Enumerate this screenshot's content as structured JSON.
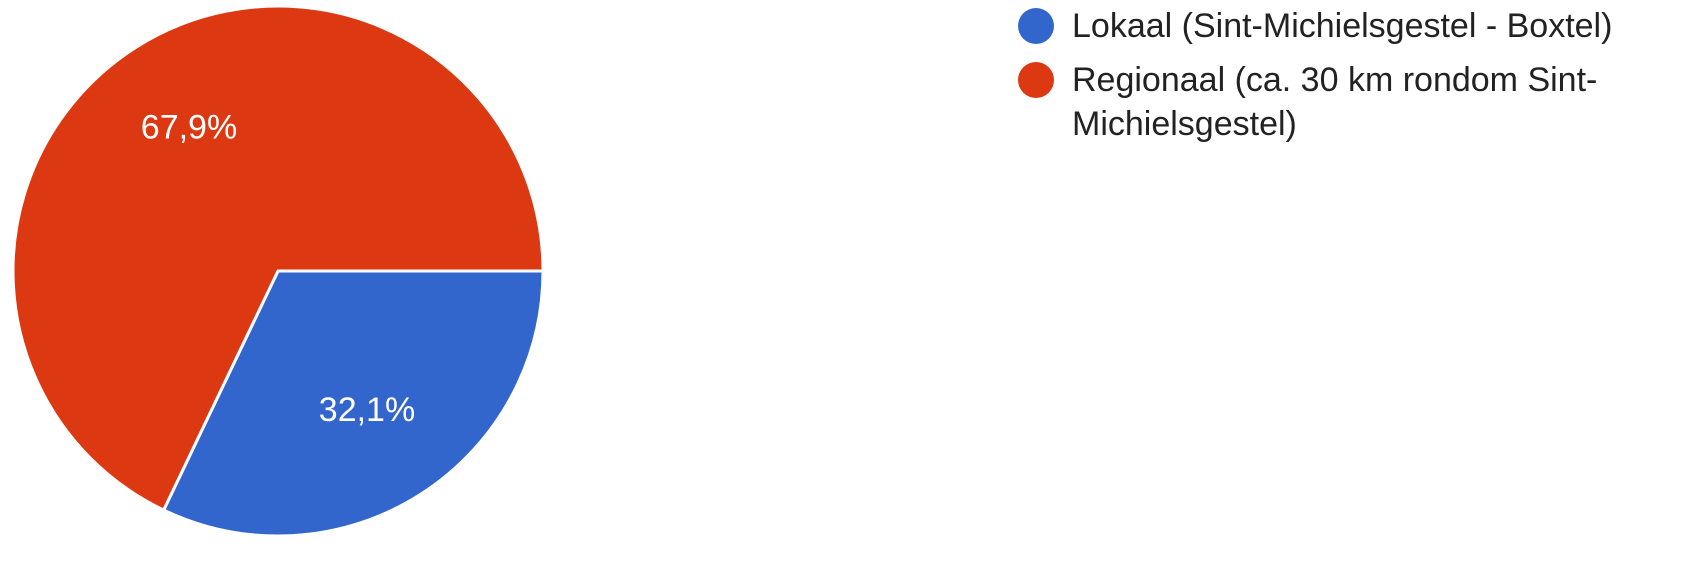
{
  "chart_data": {
    "type": "pie",
    "categories": [
      "Lokaal (Sint-Michielsgestel - Boxtel)",
      "Regionaal (ca. 30 km rondom Sint-Michielsgestel)"
    ],
    "values": [
      32.1,
      67.9
    ],
    "labels": [
      "32,1%",
      "67,9%"
    ],
    "colors": [
      "#3366cc",
      "#dc3912"
    ],
    "legend_position": "right",
    "start_angle": "3 o'clock, clockwise"
  },
  "legend": [
    {
      "label": "Lokaal (Sint-Michielsgestel - Boxtel)",
      "color": "#3366cc"
    },
    {
      "label": "Regionaal (ca. 30 km rondom Sint-Michielsgestel)",
      "color": "#dc3912"
    }
  ]
}
